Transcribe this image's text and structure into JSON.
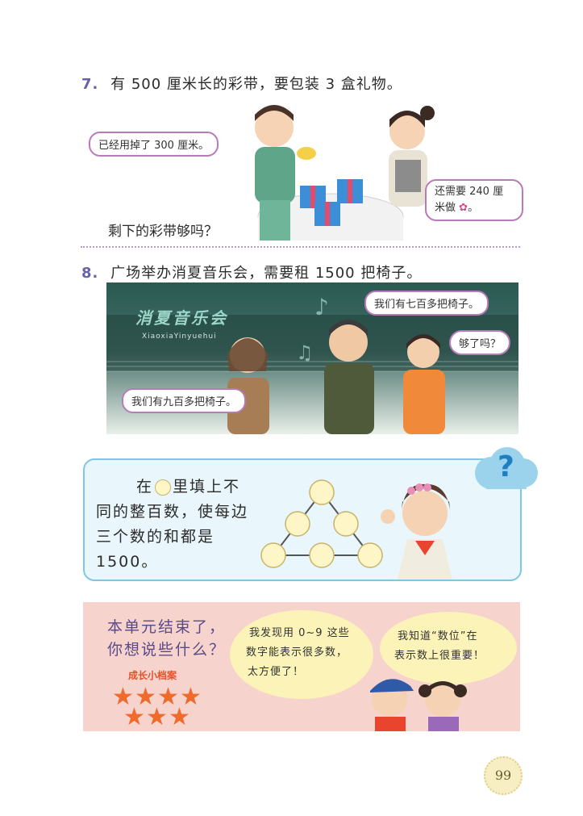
{
  "q7": {
    "number": "7.",
    "text": "有 500 厘米长的彩带，要包装 3 盒礼物。",
    "bubble_boy": "已经用掉了 300 厘米。",
    "bubble_girl_line1": "还需要 240 厘",
    "bubble_girl_line2": "米做",
    "question": "剩下的彩带够吗？"
  },
  "q8": {
    "number": "8.",
    "text": "广场举办消夏音乐会，需要租 1500 把椅子。",
    "screen_title": "消夏音乐会",
    "screen_pinyin": "XiaoxiaYinyuehui",
    "bubble_man": "我们有七百多把椅子。",
    "bubble_woman_left": "我们有九百多把椅子。",
    "bubble_girl_thought": "够了吗？"
  },
  "puzzle": {
    "before_circle": "在",
    "after_circle": "里填上不同的整百数，使每边三个数的和都是1500。",
    "question_mark": "?"
  },
  "summary": {
    "title_line1": "本单元结束了，",
    "title_line2": "你想说些什么？",
    "badge_label": "成长小档案",
    "stars": 7,
    "cloud1_line1": "我发现用 0~9 这些",
    "cloud1_line2": "数字能表示很多数，",
    "cloud1_line3": "太方便了！",
    "cloud2_line1": "我知道“数位”在",
    "cloud2_line2": "表示数上很重要！"
  },
  "page_number": "99"
}
